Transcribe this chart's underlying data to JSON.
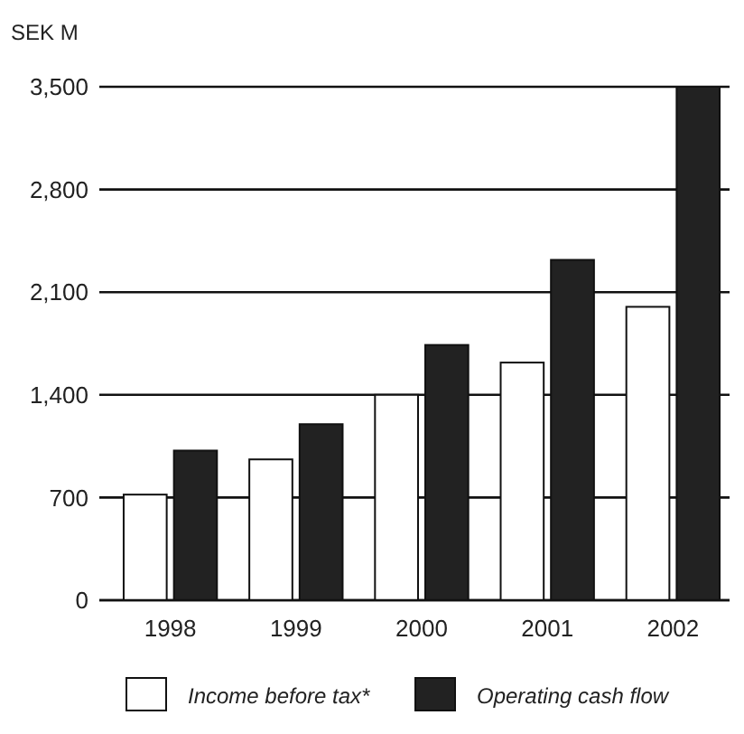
{
  "chart_data": {
    "type": "bar",
    "ylabel": "SEK M",
    "categories": [
      "1998",
      "1999",
      "2000",
      "2001",
      "2002"
    ],
    "series": [
      {
        "name": "Income before tax*",
        "color": "#ffffff",
        "values": [
          720,
          960,
          1400,
          1620,
          2000
        ]
      },
      {
        "name": "Operating cash flow",
        "color": "#222222",
        "values": [
          1020,
          1200,
          1740,
          2320,
          3500
        ]
      }
    ],
    "ylim": [
      0,
      3500
    ],
    "yticks": [
      0,
      700,
      {
        "value": 1400,
        "label": "1,400"
      },
      {
        "value": 2100,
        "label": "2,100"
      },
      {
        "value": 2800,
        "label": "2,800"
      },
      {
        "value": 3500,
        "label": "3,500"
      }
    ],
    "grid": "y",
    "legend": "bottom"
  }
}
